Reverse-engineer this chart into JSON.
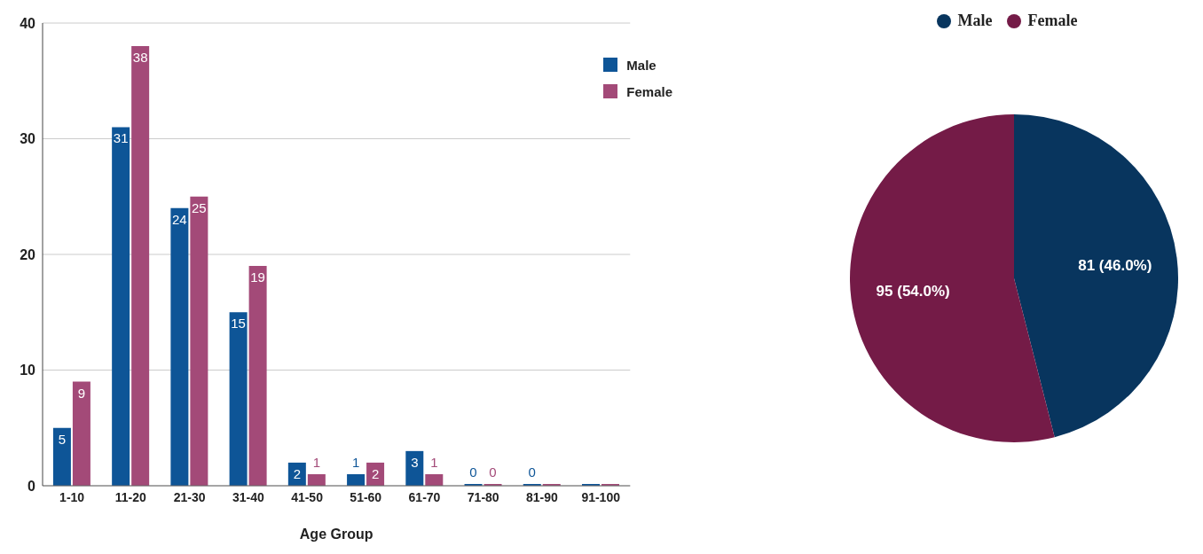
{
  "chart_data": [
    {
      "type": "bar",
      "xlabel": "Age Group",
      "categories": [
        "1-10",
        "11-20",
        "21-30",
        "31-40",
        "41-50",
        "51-60",
        "61-70",
        "71-80",
        "81-90",
        "91-100"
      ],
      "series": [
        {
          "name": "Male",
          "color": "#0e5597",
          "values": [
            5,
            31,
            24,
            15,
            2,
            1,
            3,
            0,
            0,
            0
          ],
          "value_labels": [
            "5",
            "31",
            "24",
            "15",
            "2",
            "1",
            "3",
            "0",
            "0",
            null
          ]
        },
        {
          "name": "Female",
          "color": "#a34a78",
          "values": [
            9,
            38,
            25,
            19,
            1,
            2,
            1,
            0,
            0,
            0
          ],
          "value_labels": [
            "9",
            "38",
            "25",
            "19",
            "1",
            "2",
            "1",
            "0",
            null,
            null
          ]
        }
      ],
      "ylim": [
        0,
        40
      ],
      "yticks": [
        0,
        10,
        20,
        30,
        40
      ],
      "grid": "y",
      "legend": "top right"
    },
    {
      "type": "pie",
      "categories": [
        "Male",
        "Female"
      ],
      "values": [
        81,
        95
      ],
      "colors": [
        "#08355e",
        "#741b47"
      ],
      "value_labels": [
        "81 (46.0%)",
        "95 (54.0%)"
      ],
      "legend": "top"
    }
  ]
}
